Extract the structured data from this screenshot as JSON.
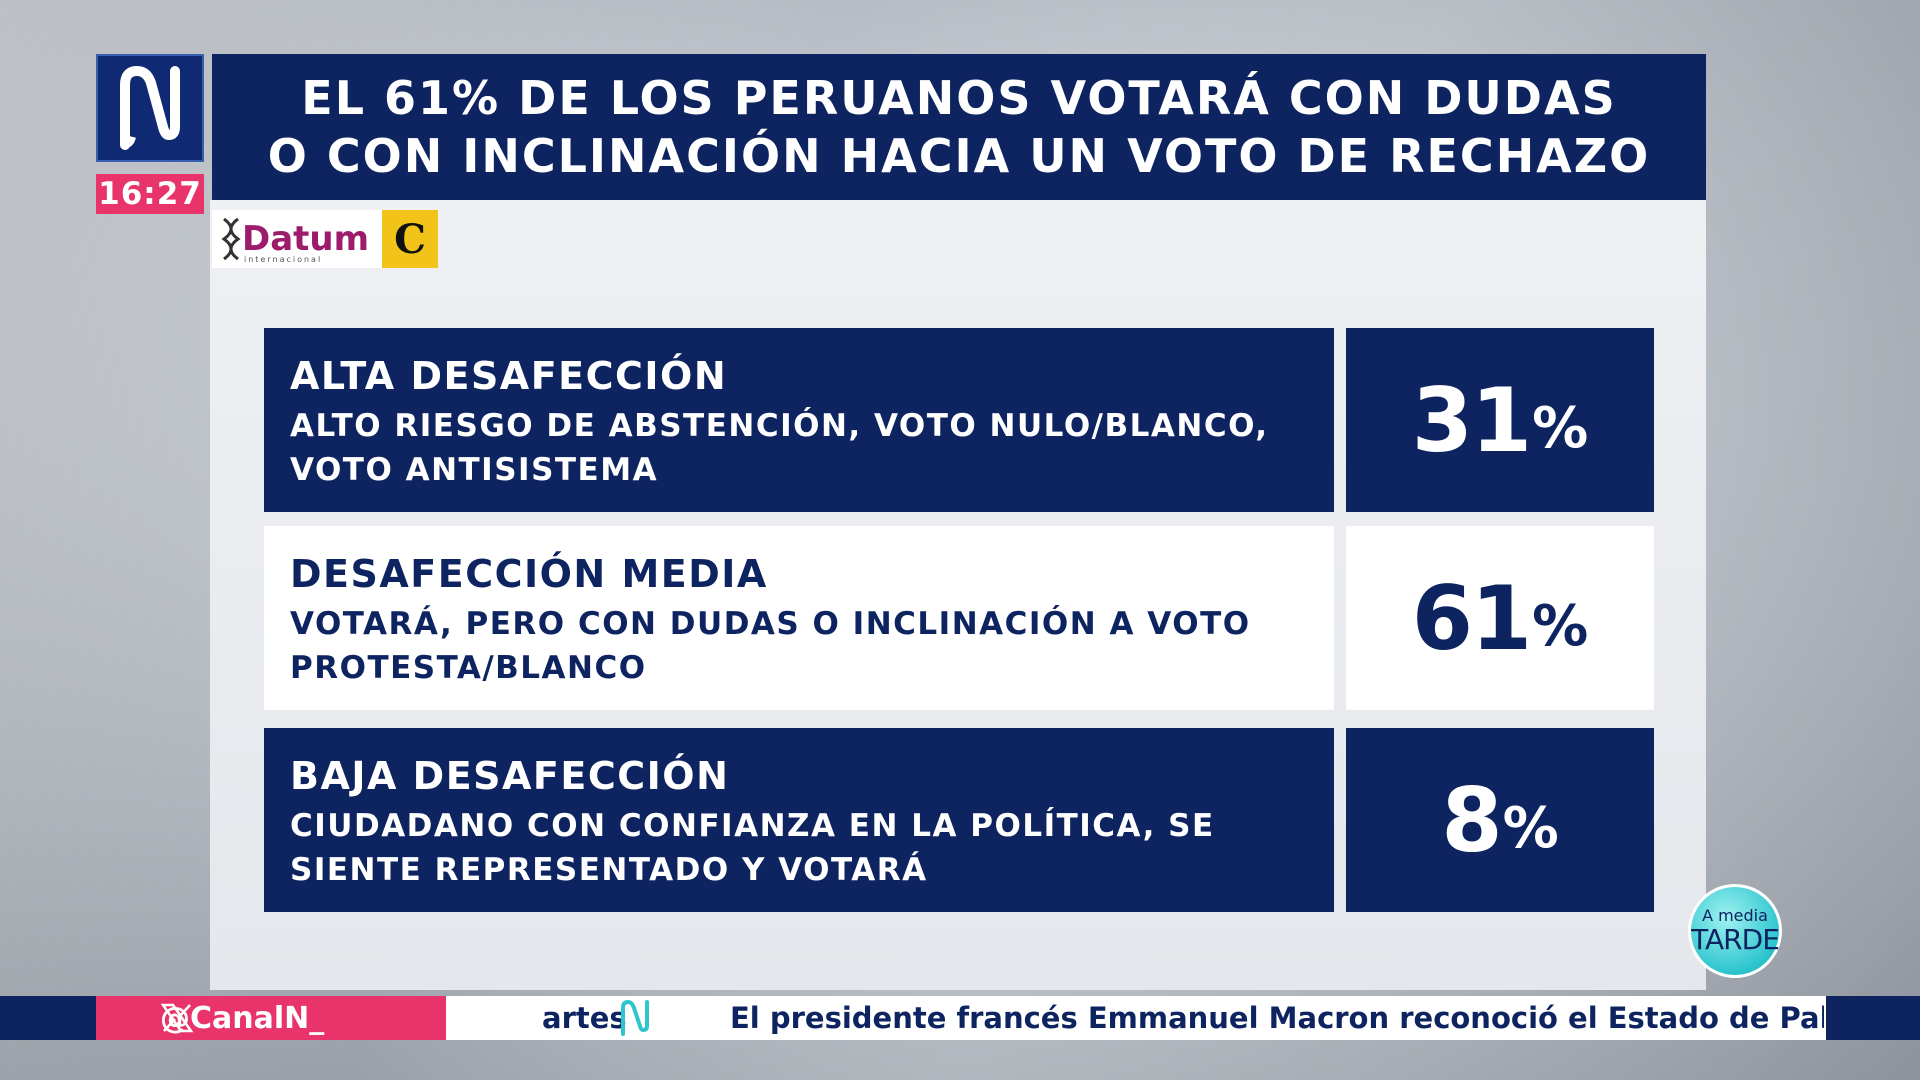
{
  "channel": {
    "logo_icon": "canal-n-logo-icon",
    "time": "16:27",
    "accent_color": "#e8336b",
    "navy_color": "#0d2460"
  },
  "headline": {
    "line1": "EL 61% DE LOS PERUANOS VOTARÁ CON DUDAS",
    "line2": "O CON INCLINACIÓN HACIA UN VOTO DE RECHAZO"
  },
  "sources": {
    "datum_name": "Datum",
    "datum_sub": "internacional",
    "comercio_mark": "C"
  },
  "rows": [
    {
      "title": "ALTA DESAFECCIÓN",
      "line1": "ALTO RIESGO DE ABSTENCIÓN, VOTO NULO/BLANCO,",
      "line2": "VOTO ANTISISTEMA",
      "value": "31",
      "unit": "%",
      "style": "dark"
    },
    {
      "title": "DESAFECCIÓN MEDIA",
      "line1": "VOTARÁ, PERO CON DUDAS O INCLINACIÓN A VOTO",
      "line2": "PROTESTA/BLANCO",
      "value": "61",
      "unit": "%",
      "style": "light"
    },
    {
      "title": "BAJA DESAFECCIÓN",
      "line1": "CIUDADANO CON CONFIANZA EN LA POLÍTICA, SE",
      "line2": "SIENTE REPRESENTADO Y VOTARÁ",
      "value": "8",
      "unit": "%",
      "style": "dark"
    }
  ],
  "show_badge": {
    "line1": "A media",
    "line2": "TARDE"
  },
  "ticker": {
    "handle": "@CanalN_",
    "previous_fragment": "artes",
    "message": "El presidente francés Emmanuel Macron reconoció el Estado de Pale"
  }
}
